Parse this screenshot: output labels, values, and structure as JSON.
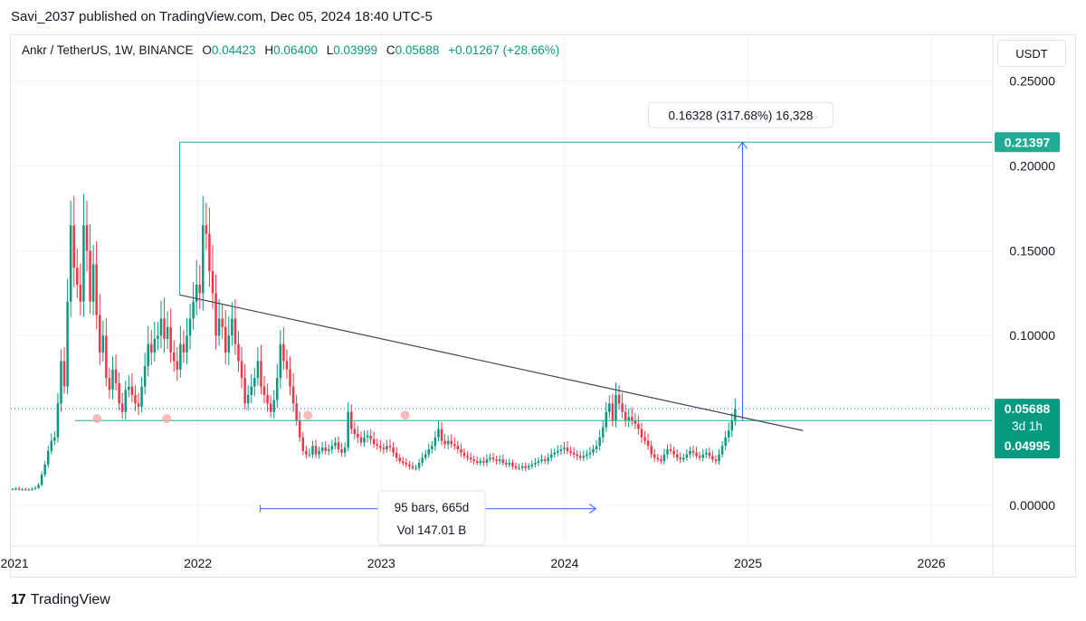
{
  "header": {
    "publisher_line": "Savi_2037 published on TradingView.com, Dec 05, 2024 18:40 UTC-5"
  },
  "legend": {
    "symbol": "Ankr / TetherUS, 1W, BINANCE",
    "open_label": "O",
    "open_value": "0.04423",
    "high_label": "H",
    "high_value": "0.06400",
    "low_label": "L",
    "low_value": "0.03999",
    "close_label": "C",
    "close_value": "0.05688",
    "change": "+0.01267 (+28.66%)"
  },
  "currency_button": "USDT",
  "footer": {
    "brand": "TradingView",
    "brand_mark": "17"
  },
  "colors": {
    "up": "#089981",
    "down": "#f23645",
    "trendline": "#434651",
    "horizontal": "#22ab94",
    "measure": "#2962ff",
    "pivot": "#f7a9a7"
  },
  "chart_data": {
    "type": "candlestick",
    "timeframe": "1W",
    "y_axis": {
      "ticks": [
        0.25,
        0.2,
        0.15,
        0.1,
        0.0
      ],
      "tick_labels": [
        "0.25000",
        "0.20000",
        "0.15000",
        "0.10000",
        "0.00000"
      ],
      "range": [
        -0.024,
        0.277
      ]
    },
    "x_axis": {
      "tick_labels": [
        "2021",
        "2022",
        "2023",
        "2024",
        "2025",
        "2026"
      ],
      "tick_years": [
        2021,
        2022,
        2023,
        2024,
        2025,
        2026
      ],
      "range_years": [
        2020.98,
        2026.33
      ]
    },
    "price_labels": [
      {
        "text": "0.21397",
        "value": 0.21397
      },
      {
        "text": "0.05688",
        "value": 0.05688
      },
      {
        "text": "3d 1h",
        "value": 0.0455
      },
      {
        "text": "0.04995",
        "value": 0.04995
      }
    ],
    "trendline": {
      "start": [
        2021.9,
        0.124
      ],
      "end": [
        2025.3,
        0.044
      ]
    },
    "support_line": {
      "value": 0.04995,
      "from_year": 2021.33
    },
    "resistance_line": {
      "value": 0.21397,
      "from_year": 2021.9
    },
    "pivot_points": [
      [
        2021.45,
        0.05
      ],
      [
        2021.83,
        0.05
      ],
      [
        2022.6,
        0.052
      ],
      [
        2023.13,
        0.052
      ]
    ],
    "measure_vertical": {
      "x_year": 2024.97,
      "from": 0.05,
      "to": 0.21397,
      "label": "0.16328 (317.68%) 16,328"
    },
    "measure_horizontal": {
      "from_year": 2022.34,
      "to_year": 2024.17,
      "value": -0.002,
      "label_line1": "95 bars, 665d",
      "label_line2": "Vol 147.01 B"
    },
    "candles_weekly_closes": [
      0.0095,
      0.0098,
      0.0093,
      0.0094,
      0.0092,
      0.0093,
      0.0097,
      0.0102,
      0.012,
      0.018,
      0.024,
      0.032,
      0.038,
      0.04,
      0.06,
      0.085,
      0.07,
      0.12,
      0.165,
      0.14,
      0.13,
      0.12,
      0.165,
      0.15,
      0.12,
      0.142,
      0.112,
      0.09,
      0.1,
      0.075,
      0.068,
      0.08,
      0.072,
      0.06,
      0.055,
      0.068,
      0.07,
      0.065,
      0.06,
      0.058,
      0.07,
      0.082,
      0.095,
      0.09,
      0.098,
      0.1,
      0.11,
      0.098,
      0.105,
      0.09,
      0.085,
      0.08,
      0.095,
      0.09,
      0.1,
      0.11,
      0.12,
      0.13,
      0.125,
      0.165,
      0.16,
      0.138,
      0.125,
      0.1,
      0.11,
      0.105,
      0.09,
      0.1,
      0.11,
      0.095,
      0.085,
      0.075,
      0.06,
      0.065,
      0.07,
      0.075,
      0.085,
      0.07,
      0.065,
      0.06,
      0.055,
      0.062,
      0.075,
      0.095,
      0.085,
      0.08,
      0.07,
      0.06,
      0.05,
      0.04,
      0.032,
      0.03,
      0.03,
      0.035,
      0.03,
      0.032,
      0.034,
      0.032,
      0.033,
      0.035,
      0.037,
      0.033,
      0.031,
      0.034,
      0.055,
      0.045,
      0.042,
      0.04,
      0.037,
      0.04,
      0.041,
      0.039,
      0.036,
      0.035,
      0.034,
      0.033,
      0.035,
      0.034,
      0.031,
      0.028,
      0.026,
      0.025,
      0.024,
      0.023,
      0.022,
      0.022,
      0.025,
      0.028,
      0.03,
      0.033,
      0.035,
      0.04,
      0.045,
      0.038,
      0.036,
      0.038,
      0.036,
      0.035,
      0.033,
      0.031,
      0.029,
      0.028,
      0.027,
      0.026,
      0.025,
      0.026,
      0.025,
      0.027,
      0.028,
      0.027,
      0.026,
      0.027,
      0.025,
      0.024,
      0.025,
      0.023,
      0.022,
      0.022,
      0.023,
      0.022,
      0.023,
      0.024,
      0.025,
      0.026,
      0.027,
      0.026,
      0.028,
      0.03,
      0.031,
      0.032,
      0.033,
      0.034,
      0.032,
      0.031,
      0.03,
      0.029,
      0.028,
      0.029,
      0.03,
      0.031,
      0.033,
      0.035,
      0.04,
      0.046,
      0.055,
      0.06,
      0.05,
      0.065,
      0.06,
      0.055,
      0.05,
      0.052,
      0.05,
      0.048,
      0.045,
      0.04,
      0.038,
      0.035,
      0.03,
      0.028,
      0.027,
      0.026,
      0.03,
      0.033,
      0.032,
      0.03,
      0.028,
      0.027,
      0.028,
      0.03,
      0.032,
      0.031,
      0.029,
      0.028,
      0.03,
      0.031,
      0.029,
      0.027,
      0.026,
      0.03,
      0.035,
      0.04,
      0.044,
      0.05,
      0.05688
    ]
  }
}
